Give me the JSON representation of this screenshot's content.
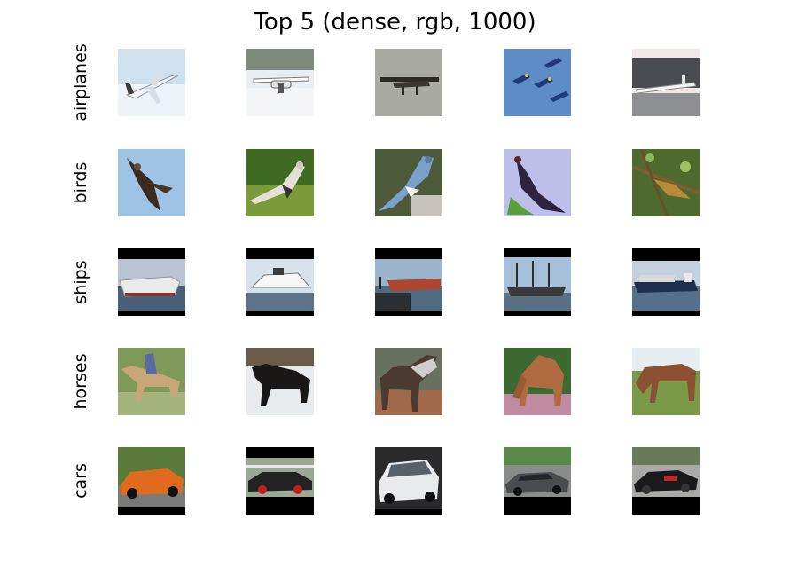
{
  "title": "Top 5 (dense, rgb, 1000)",
  "rows": [
    {
      "label": "airplanes"
    },
    {
      "label": "birds"
    },
    {
      "label": "ships"
    },
    {
      "label": "horses"
    },
    {
      "label": "cars"
    }
  ]
}
